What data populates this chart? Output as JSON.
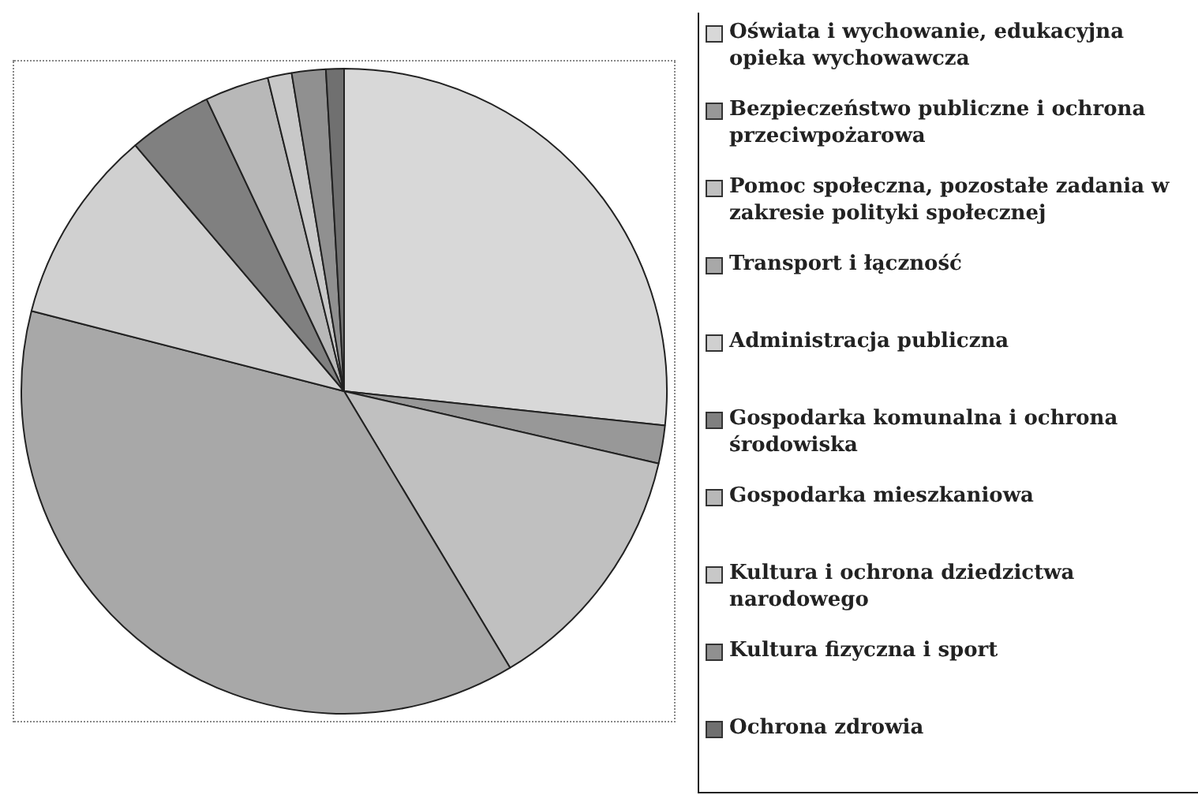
{
  "chart_data": {
    "type": "pie",
    "categories": [
      "Oświata i wychowanie, edukacyjna opieka wychowawcza",
      "Bezpieczeństwo publiczne i ochrona przeciwpożarowa",
      "Pomoc społeczna, pozostałe zadania w zakresie polityki społecznej",
      "Transport i łączność",
      "Administracja publiczna",
      "Gospodarka komunalna i ochrona środowiska",
      "Gospodarka mieszkaniowa",
      "Kultura i ochrona dziedzictwa narodowego",
      "Kultura fizyczna i sport",
      "Ochrona zdrowia"
    ],
    "values": [
      26.7,
      1.9,
      12.8,
      37.6,
      9.8,
      4.2,
      3.2,
      1.2,
      1.7,
      0.9
    ],
    "colors": [
      "#d8d8d8",
      "#989898",
      "#c0c0c0",
      "#a8a8a8",
      "#d0d0d0",
      "#808080",
      "#b8b8b8",
      "#c8c8c8",
      "#909090",
      "#707070"
    ],
    "legend": "right"
  }
}
